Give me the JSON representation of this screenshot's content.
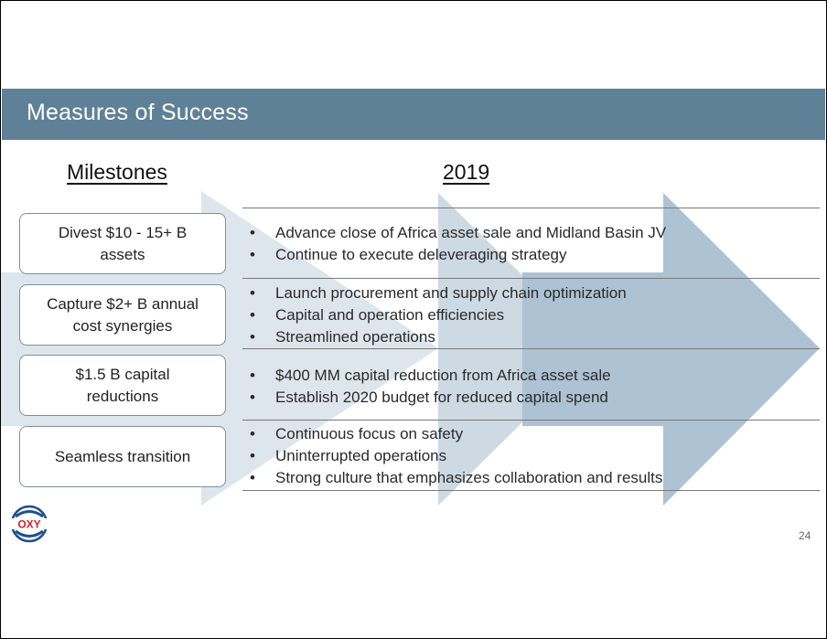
{
  "slide": {
    "title": "Measures of Success",
    "page_number": "24",
    "logo_text": "OXY"
  },
  "columns": {
    "left_heading": "Milestones",
    "right_heading": "2019"
  },
  "rows": [
    {
      "milestone": "Divest $10 - 15+ B\nassets",
      "bullets": [
        "Advance close of Africa asset sale and Midland Basin JV",
        "Continue to execute deleveraging strategy"
      ]
    },
    {
      "milestone": "Capture $2+ B annual\ncost synergies",
      "bullets": [
        "Launch procurement and supply chain optimization",
        "Capital and operation efficiencies",
        "Streamlined operations"
      ]
    },
    {
      "milestone": "$1.5 B capital\nreductions",
      "bullets": [
        "$400 MM capital reduction from Africa asset sale",
        "Establish 2020 budget for reduced capital spend"
      ]
    },
    {
      "milestone": "Seamless transition",
      "bullets": [
        "Continuous focus on safety",
        "Uninterrupted operations",
        "Strong culture that emphasizes collaboration and results"
      ]
    }
  ],
  "colors": {
    "title_bar": "#5f8198",
    "arrow_light": "#dde6ec",
    "arrow_mid": "#c9d7e1",
    "arrow_dark": "#adc2d3",
    "logo_red": "#d6202b"
  }
}
